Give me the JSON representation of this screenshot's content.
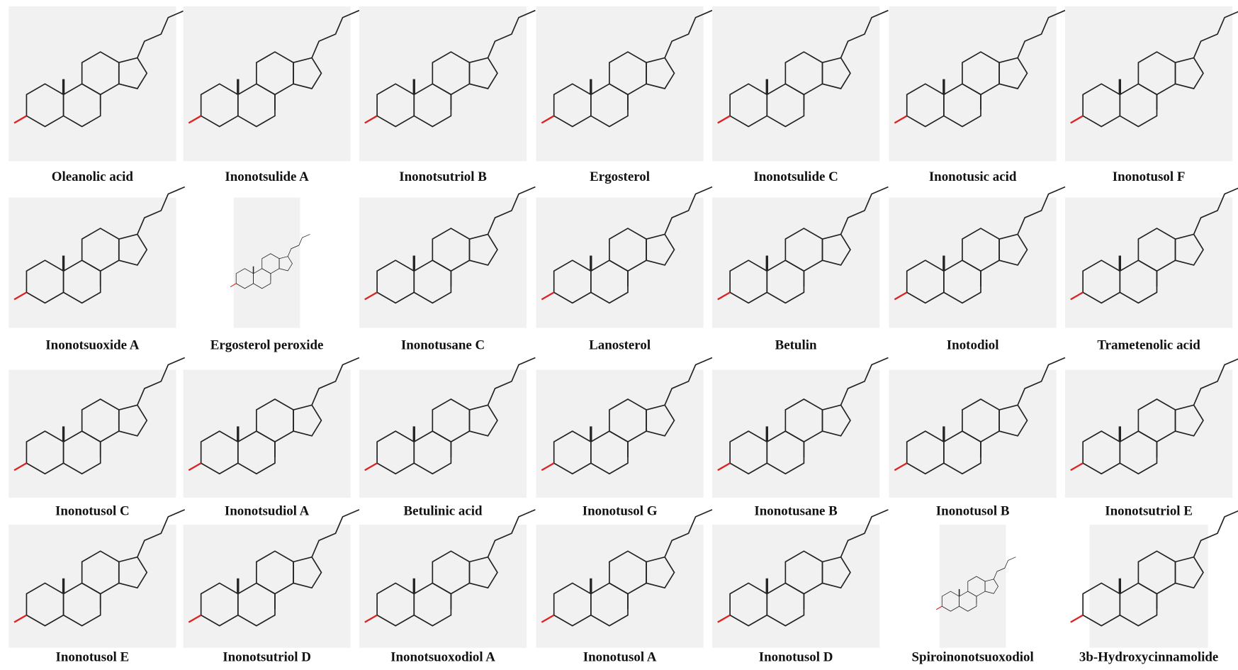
{
  "rows": [
    [
      "Oleanolic acid",
      "Inonotsulide A",
      "Inonotsutriol B",
      "Ergosterol",
      "Inonotsulide C",
      "Inonotusic acid",
      "Inonotusol F"
    ],
    [
      "Inonotsuoxide A",
      "Ergosterol peroxide",
      "Inonotusane C",
      "Lanosterol",
      "Betulin",
      "Inotodiol",
      "Trametenolic acid"
    ],
    [
      "Inonotusol C",
      "Inonotsudiol A",
      "Betulinic acid",
      "Inonotusol G",
      "Inonotusane B",
      "Inonotusol B",
      "Inonotsutriol E"
    ],
    [
      "Inonotusol E",
      "Inonotsutriol D",
      "Inonotsuoxodiol A",
      "Inonotusol A",
      "Inonotusol D",
      "Spiroinonotsuoxodiol",
      "3b-Hydroxycinnamolide"
    ]
  ]
}
